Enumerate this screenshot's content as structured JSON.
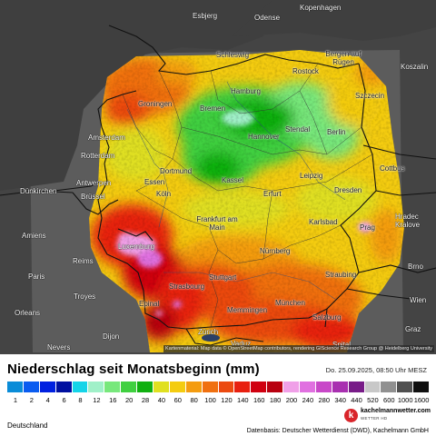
{
  "map": {
    "cities": [
      {
        "name": "Esbjerg"
      },
      {
        "name": "Odense"
      },
      {
        "name": "Kopenhagen"
      },
      {
        "name": "Schleswig"
      },
      {
        "name": "Bergen auf Rügen"
      },
      {
        "name": "Rostock"
      },
      {
        "name": "Koszalin"
      },
      {
        "name": "Hamburg"
      },
      {
        "name": "Szczecin"
      },
      {
        "name": "Groningen"
      },
      {
        "name": "Bremen"
      },
      {
        "name": "Amsterdam"
      },
      {
        "name": "Hannover"
      },
      {
        "name": "Berlin"
      },
      {
        "name": "Rotterdam"
      },
      {
        "name": "Stendal"
      },
      {
        "name": "Dortmund"
      },
      {
        "name": "Cottbus"
      },
      {
        "name": "Kassel"
      },
      {
        "name": "Leipzig"
      },
      {
        "name": "Dünkirchen"
      },
      {
        "name": "Antwerpen"
      },
      {
        "name": "Essen"
      },
      {
        "name": "Brüssel"
      },
      {
        "name": "Köln"
      },
      {
        "name": "Erfurt"
      },
      {
        "name": "Dresden"
      },
      {
        "name": "Hradec Kralove"
      },
      {
        "name": "Frankfurt am Main"
      },
      {
        "name": "Karlsbad"
      },
      {
        "name": "Prag"
      },
      {
        "name": "Amiens"
      },
      {
        "name": "Luxemburg"
      },
      {
        "name": "Nürnberg"
      },
      {
        "name": "Reims"
      },
      {
        "name": "Brno"
      },
      {
        "name": "Paris"
      },
      {
        "name": "Stuttgart"
      },
      {
        "name": "Straubing"
      },
      {
        "name": "Troyes"
      },
      {
        "name": "Epinal"
      },
      {
        "name": "Strasbourg"
      },
      {
        "name": "München"
      },
      {
        "name": "Wien"
      },
      {
        "name": "Memmingen"
      },
      {
        "name": "Salzburg"
      },
      {
        "name": "Orleans"
      },
      {
        "name": "Graz"
      },
      {
        "name": "Dijon"
      },
      {
        "name": "Zürich"
      },
      {
        "name": "Vaduz"
      },
      {
        "name": "Nevers"
      },
      {
        "name": "Spital"
      }
    ],
    "attribution": "Kartenmaterial: Map data © OpenStreetMap contributors, rendering GIScience Research Group @ Heidelberg University"
  },
  "legend": {
    "title": "Niederschlag seit Monatsbeginn (mm)",
    "date": "Do. 25.09.2025, 08:50 Uhr MESZ",
    "unit": "mm",
    "ticks": [
      "1",
      "2",
      "4",
      "6",
      "8",
      "12",
      "16",
      "20",
      "28",
      "40",
      "60",
      "80",
      "100",
      "120",
      "140",
      "160",
      "180",
      "200",
      "240",
      "280",
      "340",
      "440",
      "520",
      "600",
      "1000",
      "1600"
    ],
    "colors": [
      "#0a8cd8",
      "#0a5cf0",
      "#0020e0",
      "#0010a0",
      "#14d4e8",
      "#a0f0c8",
      "#78e87c",
      "#40d040",
      "#10b010",
      "#e0e020",
      "#f4cc10",
      "#f49c10",
      "#f07010",
      "#ec4a10",
      "#e82010",
      "#d00010",
      "#b80010",
      "#f0a0e8",
      "#e070e0",
      "#c848c8",
      "#a830b0",
      "#781c88",
      "#c8c8c8",
      "#909090",
      "#505050",
      "#101010"
    ]
  },
  "footer": {
    "region": "Deutschland",
    "source": "Datenbasis: Deutscher Wetterdienst (DWD), Kachelmann GmbH",
    "brand": "kachelmannwetter.com",
    "brand_sub": "WETTER HD",
    "brand_logo": "k"
  }
}
